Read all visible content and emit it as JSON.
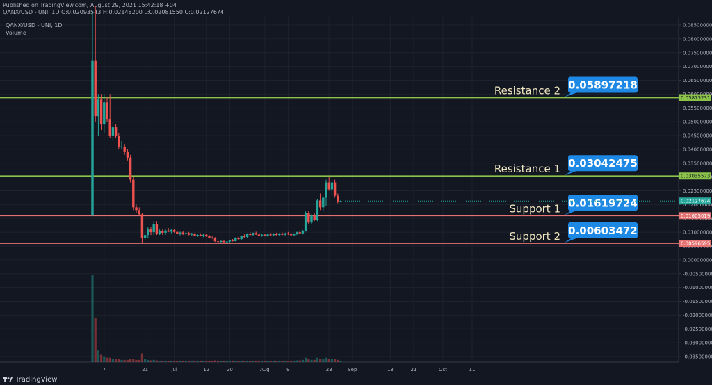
{
  "header": {
    "published": "Published on TradingView.com, August 29, 2021 15:42:18 +04",
    "ohlc": "QANX/USD - UNI, 1D O:0.02093543 H:0.02148200 L:0.02081550 C:0.02127674"
  },
  "legend": {
    "symbol": "QANX/USD - UNI, 1D",
    "volume": "Volume"
  },
  "footer": {
    "brand": "TradingView",
    "logo_icon": "tradingview-logo-icon"
  },
  "colors": {
    "background": "#131722",
    "up": "#26a69a",
    "down": "#ef5350",
    "resistance": "#8bc34a",
    "support": "#e57373",
    "callout": "#1e88e5"
  },
  "annotations": [
    {
      "label": "Resistance 2",
      "value": "0.05897218",
      "price": 0.0587,
      "kind": "resistance",
      "axis_tag": "0.05873231"
    },
    {
      "label": "Resistance 1",
      "value": "0.03042475",
      "price": 0.03035,
      "kind": "resistance",
      "axis_tag": "0.03035573"
    },
    {
      "label": "Support 1",
      "value": "0.01619724",
      "price": 0.016,
      "kind": "support",
      "axis_tag": "0.01605019"
    },
    {
      "label": "Support 2",
      "value": "0.00603472",
      "price": 0.006,
      "kind": "support",
      "axis_tag": "0.00596595"
    }
  ],
  "current_price_tag": "0.02127674",
  "chart_data": {
    "type": "candlestick",
    "y_ticks": [
      "0.08500000",
      "0.08000000",
      "0.07500000",
      "0.07000000",
      "0.06500000",
      "0.06000000",
      "0.05500000",
      "0.05000000",
      "0.04500000",
      "0.04000000",
      "0.03500000",
      "0.03000000",
      "0.02500000",
      "0.02000000",
      "0.01500000",
      "0.01000000",
      "0.00500000",
      "0.00000000",
      "-0.00500000",
      "-0.01000000",
      "-0.01500000",
      "-0.02000000",
      "-0.02500000",
      "-0.03000000",
      "-0.03500000"
    ],
    "ylim": [
      -0.0375,
      0.0875
    ],
    "x_ticks": [
      {
        "label": "7",
        "i": 4
      },
      {
        "label": "21",
        "i": 18
      },
      {
        "label": "Jul",
        "i": 28
      },
      {
        "label": "12",
        "i": 39
      },
      {
        "label": "20",
        "i": 47
      },
      {
        "label": "Aug",
        "i": 59
      },
      {
        "label": "9",
        "i": 67
      },
      {
        "label": "23",
        "i": 81
      },
      {
        "label": "Sep",
        "i": 89
      },
      {
        "label": "13",
        "i": 102
      },
      {
        "label": "21",
        "i": 110
      },
      {
        "label": "Oct",
        "i": 120
      },
      {
        "label": "11",
        "i": 130
      }
    ],
    "candles": [
      {
        "o": 0.016,
        "h": 0.09,
        "l": 0.016,
        "c": 0.072,
        "v": 0.6
      },
      {
        "o": 0.072,
        "h": 0.092,
        "l": 0.05,
        "c": 0.052,
        "v": 0.3
      },
      {
        "o": 0.052,
        "h": 0.06,
        "l": 0.045,
        "c": 0.058,
        "v": 0.08
      },
      {
        "o": 0.058,
        "h": 0.06,
        "l": 0.047,
        "c": 0.049,
        "v": 0.05
      },
      {
        "o": 0.049,
        "h": 0.06,
        "l": 0.046,
        "c": 0.057,
        "v": 0.04
      },
      {
        "o": 0.057,
        "h": 0.059,
        "l": 0.05,
        "c": 0.051,
        "v": 0.03
      },
      {
        "o": 0.051,
        "h": 0.06,
        "l": 0.044,
        "c": 0.045,
        "v": 0.03
      },
      {
        "o": 0.045,
        "h": 0.05,
        "l": 0.043,
        "c": 0.048,
        "v": 0.02
      },
      {
        "o": 0.048,
        "h": 0.049,
        "l": 0.044,
        "c": 0.045,
        "v": 0.02
      },
      {
        "o": 0.045,
        "h": 0.046,
        "l": 0.04,
        "c": 0.041,
        "v": 0.02
      },
      {
        "o": 0.041,
        "h": 0.043,
        "l": 0.04,
        "c": 0.041,
        "v": 0.015
      },
      {
        "o": 0.041,
        "h": 0.042,
        "l": 0.038,
        "c": 0.039,
        "v": 0.015
      },
      {
        "o": 0.039,
        "h": 0.04,
        "l": 0.036,
        "c": 0.037,
        "v": 0.015
      },
      {
        "o": 0.037,
        "h": 0.038,
        "l": 0.028,
        "c": 0.029,
        "v": 0.02
      },
      {
        "o": 0.029,
        "h": 0.03,
        "l": 0.018,
        "c": 0.019,
        "v": 0.02
      },
      {
        "o": 0.019,
        "h": 0.02,
        "l": 0.017,
        "c": 0.018,
        "v": 0.015
      },
      {
        "o": 0.018,
        "h": 0.019,
        "l": 0.016,
        "c": 0.0165,
        "v": 0.015
      },
      {
        "o": 0.0165,
        "h": 0.017,
        "l": 0.006,
        "c": 0.008,
        "v": 0.06
      },
      {
        "o": 0.008,
        "h": 0.01,
        "l": 0.007,
        "c": 0.009,
        "v": 0.02
      },
      {
        "o": 0.009,
        "h": 0.012,
        "l": 0.008,
        "c": 0.011,
        "v": 0.015
      },
      {
        "o": 0.011,
        "h": 0.012,
        "l": 0.009,
        "c": 0.01,
        "v": 0.012
      },
      {
        "o": 0.01,
        "h": 0.014,
        "l": 0.009,
        "c": 0.013,
        "v": 0.015
      },
      {
        "o": 0.013,
        "h": 0.014,
        "l": 0.009,
        "c": 0.0095,
        "v": 0.012
      },
      {
        "o": 0.0095,
        "h": 0.011,
        "l": 0.009,
        "c": 0.0105,
        "v": 0.01
      },
      {
        "o": 0.0105,
        "h": 0.011,
        "l": 0.009,
        "c": 0.0098,
        "v": 0.01
      },
      {
        "o": 0.0098,
        "h": 0.011,
        "l": 0.009,
        "c": 0.0106,
        "v": 0.01
      },
      {
        "o": 0.0106,
        "h": 0.0115,
        "l": 0.01,
        "c": 0.0102,
        "v": 0.01
      },
      {
        "o": 0.0102,
        "h": 0.0112,
        "l": 0.0096,
        "c": 0.0108,
        "v": 0.01
      },
      {
        "o": 0.0108,
        "h": 0.0112,
        "l": 0.0098,
        "c": 0.0101,
        "v": 0.01
      },
      {
        "o": 0.0101,
        "h": 0.0106,
        "l": 0.0092,
        "c": 0.0095,
        "v": 0.01
      },
      {
        "o": 0.0095,
        "h": 0.0102,
        "l": 0.0088,
        "c": 0.0099,
        "v": 0.01
      },
      {
        "o": 0.0099,
        "h": 0.0104,
        "l": 0.009,
        "c": 0.0093,
        "v": 0.01
      },
      {
        "o": 0.0093,
        "h": 0.01,
        "l": 0.0088,
        "c": 0.0097,
        "v": 0.01
      },
      {
        "o": 0.0097,
        "h": 0.0101,
        "l": 0.0089,
        "c": 0.0091,
        "v": 0.01
      },
      {
        "o": 0.0091,
        "h": 0.0098,
        "l": 0.0086,
        "c": 0.0094,
        "v": 0.01
      },
      {
        "o": 0.0094,
        "h": 0.0097,
        "l": 0.0085,
        "c": 0.0087,
        "v": 0.01
      },
      {
        "o": 0.0087,
        "h": 0.0093,
        "l": 0.0083,
        "c": 0.009,
        "v": 0.01
      },
      {
        "o": 0.009,
        "h": 0.0096,
        "l": 0.0085,
        "c": 0.0088,
        "v": 0.01
      },
      {
        "o": 0.0088,
        "h": 0.0093,
        "l": 0.0082,
        "c": 0.0091,
        "v": 0.01
      },
      {
        "o": 0.0091,
        "h": 0.0094,
        "l": 0.0083,
        "c": 0.0085,
        "v": 0.01
      },
      {
        "o": 0.0085,
        "h": 0.009,
        "l": 0.0078,
        "c": 0.008,
        "v": 0.01
      },
      {
        "o": 0.008,
        "h": 0.0086,
        "l": 0.0076,
        "c": 0.0078,
        "v": 0.01
      },
      {
        "o": 0.0078,
        "h": 0.0082,
        "l": 0.0065,
        "c": 0.0067,
        "v": 0.012
      },
      {
        "o": 0.0067,
        "h": 0.0072,
        "l": 0.0062,
        "c": 0.0065,
        "v": 0.01
      },
      {
        "o": 0.0065,
        "h": 0.007,
        "l": 0.0061,
        "c": 0.0068,
        "v": 0.01
      },
      {
        "o": 0.0068,
        "h": 0.0071,
        "l": 0.0062,
        "c": 0.0064,
        "v": 0.01
      },
      {
        "o": 0.0064,
        "h": 0.0068,
        "l": 0.0061,
        "c": 0.0066,
        "v": 0.01
      },
      {
        "o": 0.0066,
        "h": 0.0072,
        "l": 0.0063,
        "c": 0.007,
        "v": 0.01
      },
      {
        "o": 0.007,
        "h": 0.0075,
        "l": 0.0066,
        "c": 0.0068,
        "v": 0.01
      },
      {
        "o": 0.0068,
        "h": 0.0082,
        "l": 0.0066,
        "c": 0.0079,
        "v": 0.01
      },
      {
        "o": 0.0079,
        "h": 0.0083,
        "l": 0.0072,
        "c": 0.0075,
        "v": 0.01
      },
      {
        "o": 0.0075,
        "h": 0.0088,
        "l": 0.0072,
        "c": 0.0086,
        "v": 0.01
      },
      {
        "o": 0.0086,
        "h": 0.0092,
        "l": 0.008,
        "c": 0.0083,
        "v": 0.01
      },
      {
        "o": 0.0083,
        "h": 0.0096,
        "l": 0.008,
        "c": 0.0094,
        "v": 0.01
      },
      {
        "o": 0.0094,
        "h": 0.01,
        "l": 0.0088,
        "c": 0.009,
        "v": 0.01
      },
      {
        "o": 0.009,
        "h": 0.0099,
        "l": 0.0086,
        "c": 0.0097,
        "v": 0.01
      },
      {
        "o": 0.0097,
        "h": 0.0102,
        "l": 0.009,
        "c": 0.0092,
        "v": 0.01
      },
      {
        "o": 0.0092,
        "h": 0.0096,
        "l": 0.0086,
        "c": 0.0088,
        "v": 0.01
      },
      {
        "o": 0.0088,
        "h": 0.0094,
        "l": 0.0084,
        "c": 0.0091,
        "v": 0.01
      },
      {
        "o": 0.0091,
        "h": 0.0095,
        "l": 0.0085,
        "c": 0.0087,
        "v": 0.01
      },
      {
        "o": 0.0087,
        "h": 0.0094,
        "l": 0.0084,
        "c": 0.0092,
        "v": 0.01
      },
      {
        "o": 0.0092,
        "h": 0.0097,
        "l": 0.0087,
        "c": 0.0089,
        "v": 0.01
      },
      {
        "o": 0.0089,
        "h": 0.0096,
        "l": 0.0086,
        "c": 0.0094,
        "v": 0.01
      },
      {
        "o": 0.0094,
        "h": 0.0098,
        "l": 0.0088,
        "c": 0.009,
        "v": 0.01
      },
      {
        "o": 0.009,
        "h": 0.0097,
        "l": 0.0087,
        "c": 0.0095,
        "v": 0.01
      },
      {
        "o": 0.0095,
        "h": 0.0099,
        "l": 0.0089,
        "c": 0.0091,
        "v": 0.01
      },
      {
        "o": 0.0091,
        "h": 0.0098,
        "l": 0.0088,
        "c": 0.0096,
        "v": 0.01
      },
      {
        "o": 0.0096,
        "h": 0.0101,
        "l": 0.009,
        "c": 0.0093,
        "v": 0.01
      },
      {
        "o": 0.0093,
        "h": 0.0098,
        "l": 0.0087,
        "c": 0.0089,
        "v": 0.01
      },
      {
        "o": 0.0089,
        "h": 0.0096,
        "l": 0.0086,
        "c": 0.0094,
        "v": 0.01
      },
      {
        "o": 0.0094,
        "h": 0.0102,
        "l": 0.009,
        "c": 0.01,
        "v": 0.012
      },
      {
        "o": 0.01,
        "h": 0.0106,
        "l": 0.0094,
        "c": 0.0096,
        "v": 0.012
      },
      {
        "o": 0.0096,
        "h": 0.0108,
        "l": 0.0092,
        "c": 0.0105,
        "v": 0.015
      },
      {
        "o": 0.0105,
        "h": 0.0175,
        "l": 0.0102,
        "c": 0.017,
        "v": 0.03
      },
      {
        "o": 0.017,
        "h": 0.0178,
        "l": 0.013,
        "c": 0.0135,
        "v": 0.02
      },
      {
        "o": 0.0135,
        "h": 0.0165,
        "l": 0.0128,
        "c": 0.016,
        "v": 0.015
      },
      {
        "o": 0.016,
        "h": 0.0168,
        "l": 0.014,
        "c": 0.0145,
        "v": 0.015
      },
      {
        "o": 0.0145,
        "h": 0.022,
        "l": 0.014,
        "c": 0.0215,
        "v": 0.03
      },
      {
        "o": 0.0215,
        "h": 0.024,
        "l": 0.018,
        "c": 0.019,
        "v": 0.02
      },
      {
        "o": 0.019,
        "h": 0.023,
        "l": 0.0175,
        "c": 0.0225,
        "v": 0.02
      },
      {
        "o": 0.0225,
        "h": 0.029,
        "l": 0.0195,
        "c": 0.028,
        "v": 0.03
      },
      {
        "o": 0.028,
        "h": 0.03,
        "l": 0.025,
        "c": 0.0255,
        "v": 0.02
      },
      {
        "o": 0.0255,
        "h": 0.0285,
        "l": 0.023,
        "c": 0.028,
        "v": 0.02
      },
      {
        "o": 0.028,
        "h": 0.029,
        "l": 0.0225,
        "c": 0.0232,
        "v": 0.02
      },
      {
        "o": 0.0232,
        "h": 0.024,
        "l": 0.0205,
        "c": 0.0212,
        "v": 0.015
      },
      {
        "o": 0.0209,
        "h": 0.0215,
        "l": 0.0208,
        "c": 0.0213,
        "v": 0.01
      }
    ]
  }
}
